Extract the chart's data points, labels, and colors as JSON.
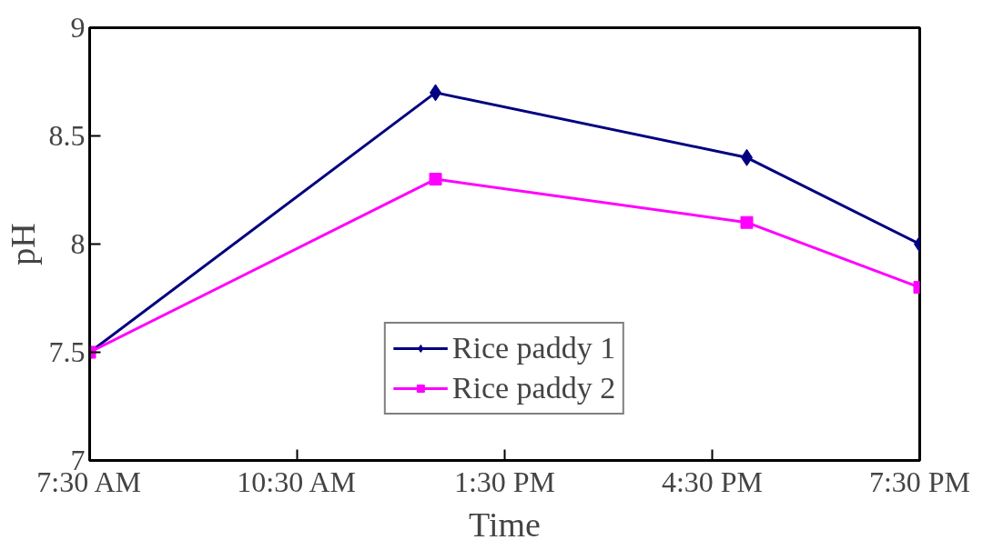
{
  "chart_data": {
    "type": "line",
    "xlabel": "Time",
    "ylabel": "pH",
    "xlim": [
      7.5,
      19.5
    ],
    "ylim": [
      7,
      9
    ],
    "xticks": [
      {
        "value": 7.5,
        "label": "7:30 AM"
      },
      {
        "value": 10.5,
        "label": "10:30 AM"
      },
      {
        "value": 13.5,
        "label": "1:30 PM"
      },
      {
        "value": 16.5,
        "label": "4:30 PM"
      },
      {
        "value": 19.5,
        "label": "7:30 PM"
      }
    ],
    "yticks": [
      7,
      7.5,
      8,
      8.5,
      9
    ],
    "x": [
      7.5,
      12.5,
      17,
      19.5
    ],
    "series": [
      {
        "name": "Rice paddy 1",
        "color": "#000080",
        "values": [
          7.5,
          8.7,
          8.4,
          8.0
        ],
        "marker": "diamond"
      },
      {
        "name": "Rice paddy 2",
        "color": "#ff00ff",
        "values": [
          7.5,
          8.3,
          8.1,
          7.8
        ],
        "marker": "square"
      }
    ],
    "grid": false,
    "legend": "bottom",
    "line_style": "solid"
  }
}
